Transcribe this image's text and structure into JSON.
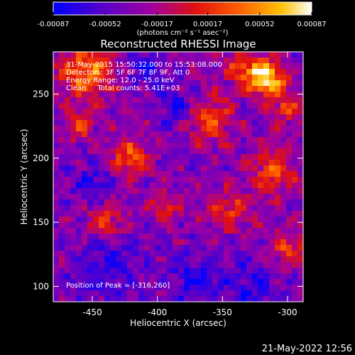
{
  "chart_data": {
    "type": "heatmap",
    "title": "Reconstructed RHESSI Image",
    "xlabel": "Heliocentric X (arcsec)",
    "ylabel": "Heliocentric Y (arcsec)",
    "xlim": [
      -480,
      -288
    ],
    "ylim": [
      88,
      283
    ],
    "xticks": [
      -450,
      -400,
      -350,
      -300
    ],
    "xtick_labels": [
      "-450",
      "-400",
      "-350",
      "-300"
    ],
    "yticks": [
      100,
      150,
      200,
      250
    ],
    "ytick_labels": [
      "100",
      "150",
      "200",
      "250"
    ],
    "colorbar": {
      "min": -0.00087,
      "max": 0.00087,
      "ticks": [
        -0.00087,
        -0.00052,
        -0.00017,
        0.00017,
        0.00052,
        0.00087
      ],
      "tick_labels": [
        "-0.00087",
        "-0.00052",
        "-0.00017",
        "0.00017",
        "0.00052",
        "0.00087"
      ],
      "unit_label": "(photons cm⁻² s⁻¹ asec⁻²)",
      "colormap": [
        "#0000ff",
        "#5a00c8",
        "#a000a0",
        "#e01010",
        "#ff6000",
        "#ffc000",
        "#ffffff"
      ]
    },
    "annotations": {
      "time_range": "31-May-2015 15:50:32.000 to 15:53:08.000",
      "detectors": "Detectors: 3F 5F 6F 7F 8F 9F, Att 0",
      "energy_range": "Energy Range: 12.0 - 25.0 keV",
      "clean_line": "Clean     Total counts: 5.41E+03",
      "peak": "Position of Peak = [-316,260]"
    },
    "peak": [
      -316,
      260
    ],
    "grid": false
  },
  "footer": {
    "timestamp": "21-May-2022 12:56"
  }
}
